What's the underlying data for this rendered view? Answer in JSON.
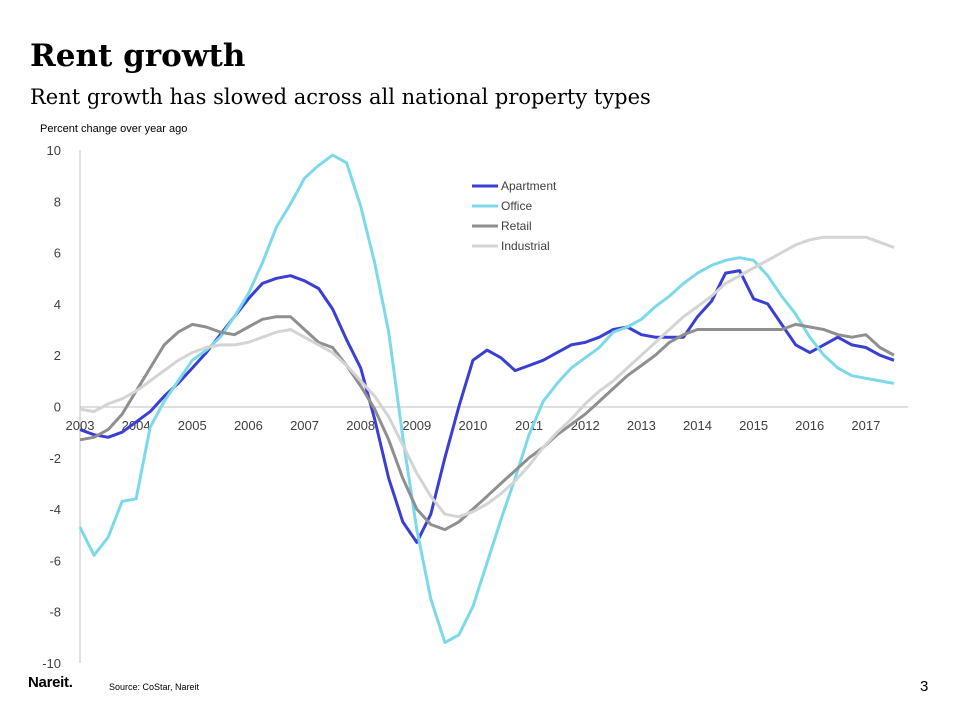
{
  "slide": {
    "title": "Rent growth",
    "subtitle": "Rent growth has slowed across all national property types",
    "unit_label": "Percent change over year ago",
    "logo": "Nareit.",
    "source": "Source: CoStar, Nareit",
    "page_number": "3"
  },
  "chart_data": {
    "type": "line",
    "title": "",
    "xlabel": "",
    "ylabel": "Percent change over year ago",
    "x_ticks": [
      "2003",
      "2004",
      "2005",
      "2006",
      "2007",
      "2008",
      "2009",
      "2010",
      "2011",
      "2012",
      "2013",
      "2014",
      "2015",
      "2016",
      "2017"
    ],
    "xlim": [
      2003.0,
      2017.75
    ],
    "ylim": [
      -10,
      10
    ],
    "y_ticks": [
      10,
      8,
      6,
      4,
      2,
      0,
      -2,
      -4,
      -6,
      -8,
      -10
    ],
    "grid": false,
    "legend_position": "top-center",
    "x": [
      2003.0,
      2003.25,
      2003.5,
      2003.75,
      2004.0,
      2004.25,
      2004.5,
      2004.75,
      2005.0,
      2005.25,
      2005.5,
      2005.75,
      2006.0,
      2006.25,
      2006.5,
      2006.75,
      2007.0,
      2007.25,
      2007.5,
      2007.75,
      2008.0,
      2008.25,
      2008.5,
      2008.75,
      2009.0,
      2009.25,
      2009.5,
      2009.75,
      2010.0,
      2010.25,
      2010.5,
      2010.75,
      2011.0,
      2011.25,
      2011.5,
      2011.75,
      2012.0,
      2012.25,
      2012.5,
      2012.75,
      2013.0,
      2013.25,
      2013.5,
      2013.75,
      2014.0,
      2014.25,
      2014.5,
      2014.75,
      2015.0,
      2015.25,
      2015.5,
      2015.75,
      2016.0,
      2016.25,
      2016.5,
      2016.75,
      2017.0,
      2017.25,
      2017.5
    ],
    "series": [
      {
        "name": "Apartment",
        "color": "#3a3fd3",
        "values": [
          -0.9,
          -1.1,
          -1.2,
          -1.0,
          -0.6,
          -0.2,
          0.4,
          0.9,
          1.5,
          2.1,
          2.8,
          3.5,
          4.2,
          4.8,
          5.0,
          5.1,
          4.9,
          4.6,
          3.8,
          2.6,
          1.5,
          -0.5,
          -2.8,
          -4.5,
          -5.3,
          -4.2,
          -2.0,
          0.0,
          1.8,
          2.2,
          1.9,
          1.4,
          1.6,
          1.8,
          2.1,
          2.4,
          2.5,
          2.7,
          3.0,
          3.1,
          2.8,
          2.7,
          2.7,
          2.7,
          3.5,
          4.1,
          5.2,
          5.3,
          4.2,
          4.0,
          3.2,
          2.4,
          2.1,
          2.4,
          2.7,
          2.4,
          2.3,
          2.0,
          1.8
        ]
      },
      {
        "name": "Office",
        "color": "#7dd9ea",
        "values": [
          -4.7,
          -5.8,
          -5.1,
          -3.7,
          -3.6,
          -0.8,
          0.2,
          1.0,
          1.8,
          2.2,
          2.7,
          3.5,
          4.4,
          5.6,
          7.0,
          7.9,
          8.9,
          9.4,
          9.8,
          9.5,
          7.8,
          5.6,
          2.9,
          -1.2,
          -4.8,
          -7.5,
          -9.2,
          -8.9,
          -7.8,
          -6.1,
          -4.4,
          -2.8,
          -1.1,
          0.2,
          0.9,
          1.5,
          1.9,
          2.3,
          2.9,
          3.1,
          3.4,
          3.9,
          4.3,
          4.8,
          5.2,
          5.5,
          5.7,
          5.8,
          5.7,
          5.1,
          4.3,
          3.6,
          2.7,
          2.0,
          1.5,
          1.2,
          1.1,
          1.0,
          0.9
        ]
      },
      {
        "name": "Retail",
        "color": "#8f8f8f",
        "values": [
          -1.3,
          -1.2,
          -0.9,
          -0.3,
          0.6,
          1.5,
          2.4,
          2.9,
          3.2,
          3.1,
          2.9,
          2.8,
          3.1,
          3.4,
          3.5,
          3.5,
          3.0,
          2.5,
          2.3,
          1.6,
          0.8,
          -0.1,
          -1.3,
          -2.8,
          -4.0,
          -4.6,
          -4.8,
          -4.5,
          -4.0,
          -3.5,
          -3.0,
          -2.5,
          -2.0,
          -1.6,
          -1.1,
          -0.7,
          -0.3,
          0.2,
          0.7,
          1.2,
          1.6,
          2.0,
          2.5,
          2.8,
          3.0,
          3.0,
          3.0,
          3.0,
          3.0,
          3.0,
          3.0,
          3.2,
          3.1,
          3.0,
          2.8,
          2.7,
          2.8,
          2.3,
          2.0
        ]
      },
      {
        "name": "Industrial",
        "color": "#d4d4d4",
        "values": [
          -0.1,
          -0.2,
          0.1,
          0.3,
          0.6,
          1.0,
          1.4,
          1.8,
          2.1,
          2.3,
          2.4,
          2.4,
          2.5,
          2.7,
          2.9,
          3.0,
          2.7,
          2.4,
          2.1,
          1.6,
          1.0,
          0.4,
          -0.4,
          -1.5,
          -2.6,
          -3.5,
          -4.2,
          -4.3,
          -4.1,
          -3.8,
          -3.4,
          -2.9,
          -2.3,
          -1.6,
          -1.0,
          -0.5,
          0.1,
          0.6,
          1.0,
          1.5,
          2.0,
          2.5,
          3.0,
          3.5,
          3.9,
          4.3,
          4.8,
          5.1,
          5.4,
          5.7,
          6.0,
          6.3,
          6.5,
          6.6,
          6.6,
          6.6,
          6.6,
          6.4,
          6.2
        ]
      }
    ]
  }
}
